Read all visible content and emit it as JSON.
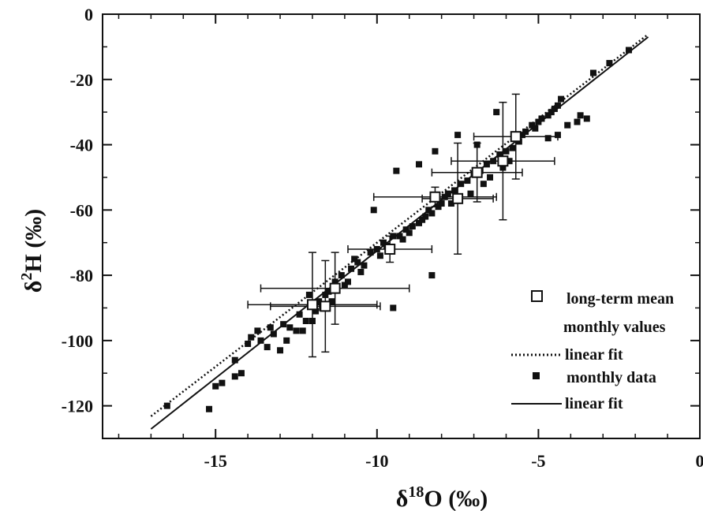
{
  "chart_data": {
    "type": "scatter",
    "title": "",
    "xlabel": {
      "base": "δ",
      "sup": "18",
      "rest": "O (‰)"
    },
    "ylabel": {
      "base": "δ",
      "sup": "2",
      "rest": "H (‰)"
    },
    "xlim": [
      -18.5,
      0
    ],
    "ylim": [
      -130,
      0
    ],
    "xticks": [
      -15,
      -10,
      -5,
      0
    ],
    "yticks": [
      0,
      -20,
      -40,
      -60,
      -80,
      -100,
      -120
    ],
    "legend": {
      "placement": "bottom-right",
      "entries": [
        {
          "marker": "open-square",
          "label": "long-term mean"
        },
        {
          "marker": "none",
          "label": "monthly values"
        },
        {
          "marker": "dotted-line",
          "label": "linear fit"
        },
        {
          "marker": "filled-square",
          "label": "monthly data"
        },
        {
          "marker": "solid-line",
          "label": "linear fit"
        }
      ]
    },
    "series": [
      {
        "name": "long-term mean monthly values",
        "marker": "open-square",
        "points": [
          {
            "x": -12.0,
            "y": -89.0,
            "xerr": 2.0,
            "yerr": 16.0
          },
          {
            "x": -11.6,
            "y": -89.5,
            "xerr": 1.7,
            "yerr": 14.0
          },
          {
            "x": -11.3,
            "y": -84.0,
            "xerr": 2.3,
            "yerr": 11.0
          },
          {
            "x": -9.6,
            "y": -72.0,
            "xerr": 1.3,
            "yerr": 4.0
          },
          {
            "x": -8.2,
            "y": -56.0,
            "xerr": 1.9,
            "yerr": 3.0
          },
          {
            "x": -7.5,
            "y": -56.5,
            "xerr": 1.1,
            "yerr": 17.0
          },
          {
            "x": -6.9,
            "y": -48.5,
            "xerr": 1.4,
            "yerr": 9.0
          },
          {
            "x": -6.1,
            "y": -45.0,
            "xerr": 1.6,
            "yerr": 18.0
          },
          {
            "x": -5.7,
            "y": -37.5,
            "xerr": 1.3,
            "yerr": 13.0
          }
        ]
      },
      {
        "name": "monthly data",
        "marker": "filled-square",
        "points": [
          [
            -16.5,
            -120
          ],
          [
            -15.2,
            -121
          ],
          [
            -15.0,
            -114
          ],
          [
            -14.8,
            -113
          ],
          [
            -14.4,
            -111
          ],
          [
            -14.4,
            -106
          ],
          [
            -14.2,
            -110
          ],
          [
            -14.0,
            -101
          ],
          [
            -13.9,
            -99
          ],
          [
            -13.7,
            -97
          ],
          [
            -13.6,
            -100
          ],
          [
            -13.4,
            -102
          ],
          [
            -13.2,
            -98
          ],
          [
            -13.0,
            -103
          ],
          [
            -12.9,
            -95
          ],
          [
            -12.7,
            -96
          ],
          [
            -12.5,
            -97
          ],
          [
            -12.4,
            -92
          ],
          [
            -12.2,
            -94
          ],
          [
            -12.0,
            -94
          ],
          [
            -11.9,
            -91
          ],
          [
            -11.8,
            -88
          ],
          [
            -11.6,
            -86
          ],
          [
            -11.5,
            -85
          ],
          [
            -11.3,
            -82
          ],
          [
            -11.1,
            -80
          ],
          [
            -10.9,
            -82
          ],
          [
            -10.8,
            -78
          ],
          [
            -10.6,
            -76
          ],
          [
            -10.4,
            -77
          ],
          [
            -10.2,
            -73
          ],
          [
            -10.0,
            -72
          ],
          [
            -9.8,
            -70
          ],
          [
            -9.7,
            -71
          ],
          [
            -9.5,
            -68
          ],
          [
            -9.3,
            -68
          ],
          [
            -9.1,
            -66
          ],
          [
            -8.9,
            -65
          ],
          [
            -8.7,
            -64
          ],
          [
            -8.5,
            -62
          ],
          [
            -8.3,
            -61
          ],
          [
            -8.1,
            -59
          ],
          [
            -8.0,
            -58
          ],
          [
            -7.8,
            -55
          ],
          [
            -7.6,
            -54
          ],
          [
            -7.4,
            -52
          ],
          [
            -7.2,
            -51
          ],
          [
            -7.0,
            -49
          ],
          [
            -6.8,
            -48
          ],
          [
            -6.6,
            -46
          ],
          [
            -6.4,
            -45
          ],
          [
            -6.2,
            -43
          ],
          [
            -6.0,
            -42
          ],
          [
            -5.8,
            -41
          ],
          [
            -5.6,
            -39
          ],
          [
            -5.5,
            -37
          ],
          [
            -5.4,
            -36
          ],
          [
            -5.2,
            -34
          ],
          [
            -5.0,
            -33
          ],
          [
            -4.9,
            -32
          ],
          [
            -4.7,
            -31
          ],
          [
            -4.6,
            -30
          ],
          [
            -4.5,
            -29
          ],
          [
            -4.4,
            -28
          ],
          [
            -4.3,
            -26
          ],
          [
            -4.1,
            -34
          ],
          [
            -3.8,
            -33
          ],
          [
            -3.7,
            -31
          ],
          [
            -3.5,
            -32
          ],
          [
            -4.4,
            -37
          ],
          [
            -4.7,
            -38
          ],
          [
            -5.1,
            -35
          ],
          [
            -3.3,
            -18
          ],
          [
            -2.8,
            -15
          ],
          [
            -2.2,
            -11
          ],
          [
            -6.3,
            -30
          ],
          [
            -6.9,
            -40
          ],
          [
            -7.5,
            -37
          ],
          [
            -8.2,
            -42
          ],
          [
            -8.7,
            -46
          ],
          [
            -9.4,
            -48
          ],
          [
            -10.1,
            -60
          ],
          [
            -8.3,
            -80
          ],
          [
            -9.5,
            -90
          ],
          [
            -7.7,
            -58
          ],
          [
            -7.1,
            -55
          ],
          [
            -6.5,
            -50
          ],
          [
            -6.1,
            -47
          ],
          [
            -5.9,
            -45
          ],
          [
            -6.7,
            -52
          ],
          [
            -7.9,
            -56
          ],
          [
            -8.6,
            -63
          ],
          [
            -9.0,
            -67
          ],
          [
            -9.9,
            -74
          ],
          [
            -10.5,
            -79
          ],
          [
            -11.0,
            -83
          ],
          [
            -11.7,
            -90
          ],
          [
            -12.3,
            -97
          ],
          [
            -12.8,
            -100
          ],
          [
            -13.3,
            -96
          ],
          [
            -12.1,
            -86
          ],
          [
            -11.4,
            -88
          ],
          [
            -10.7,
            -75
          ],
          [
            -9.2,
            -69
          ],
          [
            -8.4,
            -60
          ]
        ]
      }
    ],
    "fit_lines": [
      {
        "name": "linear fit",
        "style": "dotted",
        "slope": 7.6,
        "intercept": 6.0,
        "x_range": [
          -17.0,
          -1.6
        ]
      },
      {
        "name": "linear fit",
        "style": "solid",
        "slope": 7.8,
        "intercept": 5.5,
        "x_range": [
          -17.0,
          -1.6
        ]
      }
    ]
  }
}
